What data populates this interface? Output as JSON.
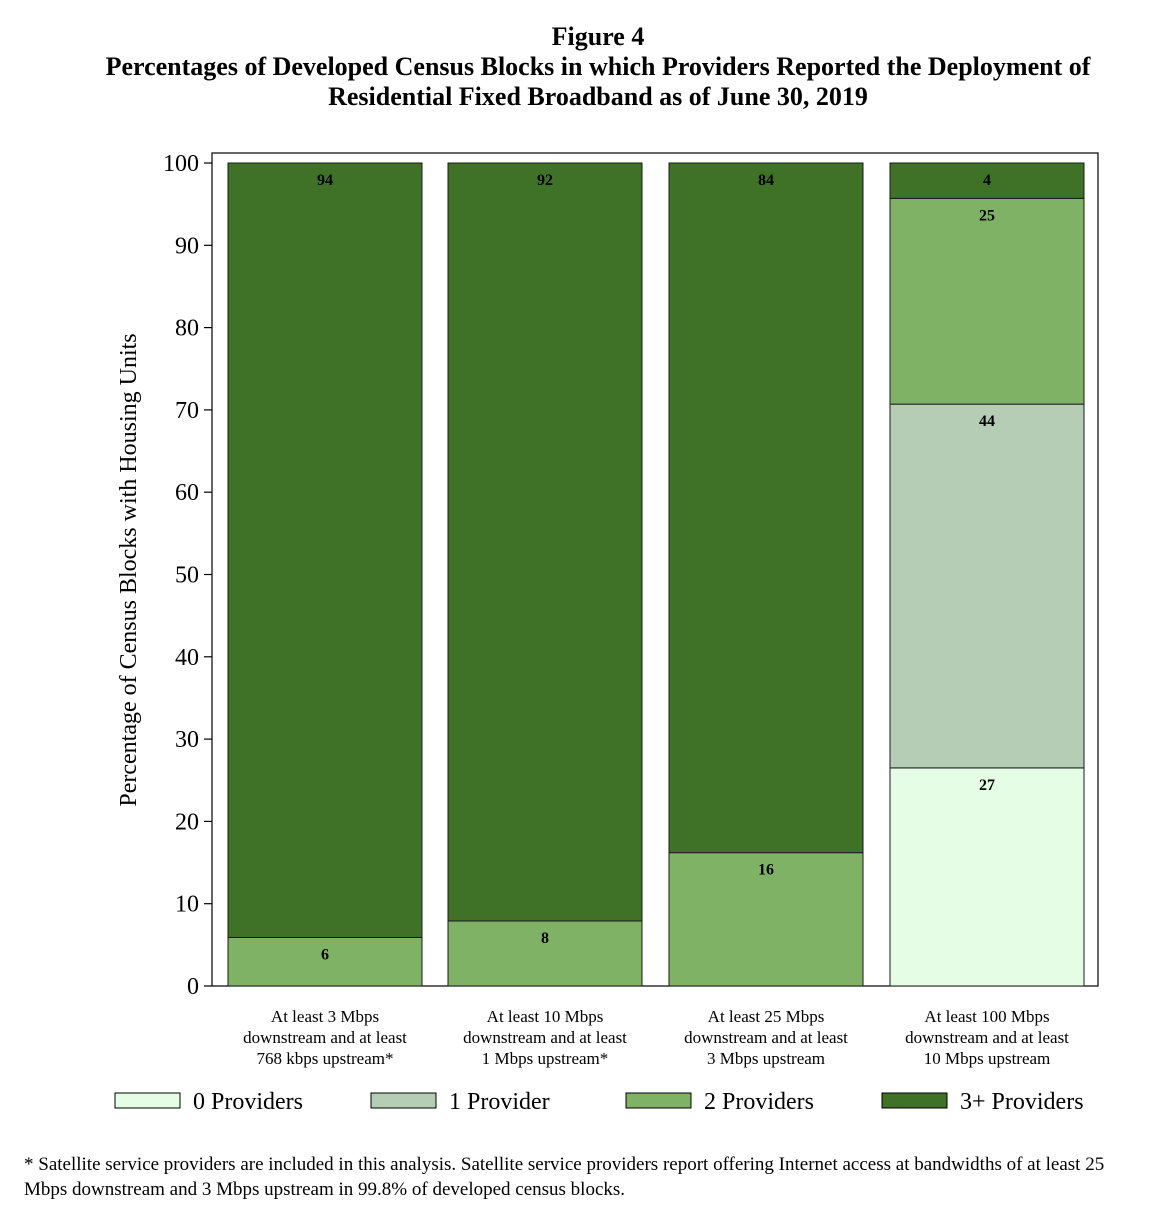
{
  "figure_label": "Figure 4",
  "title_lines": [
    "Percentages of Developed Census Blocks in which Providers Reported the Deployment of",
    "Residential Fixed Broadband as of June 30, 2019"
  ],
  "footnote": "* Satellite service providers are included in this analysis.  Satellite service providers report offering Internet access at bandwidths of at least 25 Mbps downstream and 3 Mbps upstream in 99.8% of developed census blocks.",
  "colors": {
    "p0": "#e4fde4",
    "p1": "#b5cdb5",
    "p2": "#80b266",
    "p3": "#3f7227"
  },
  "chart_data": {
    "type": "bar",
    "stacked": true,
    "ylabel": "Percentage of Census Blocks with Housing Units",
    "ylim": [
      0,
      100
    ],
    "yticks": [
      0,
      10,
      20,
      30,
      40,
      50,
      60,
      70,
      80,
      90,
      100
    ],
    "categories": [
      [
        "At least 3 Mbps",
        "downstream and at least",
        "768 kbps upstream*"
      ],
      [
        "At least 10 Mbps",
        "downstream and at least",
        "1 Mbps upstream*"
      ],
      [
        "At least 25 Mbps",
        "downstream and at least",
        "3 Mbps upstream"
      ],
      [
        "At least 100 Mbps",
        "downstream and at least",
        "10 Mbps upstream"
      ]
    ],
    "series": [
      {
        "name": "0 Providers",
        "color_key": "p0",
        "values": [
          0,
          0,
          0,
          26.5
        ],
        "labels": [
          "",
          "",
          "",
          "27"
        ]
      },
      {
        "name": "1 Provider",
        "color_key": "p1",
        "values": [
          0,
          0,
          0,
          44.2
        ],
        "labels": [
          "",
          "",
          "",
          "44"
        ]
      },
      {
        "name": "2 Providers",
        "color_key": "p2",
        "values": [
          5.9,
          7.9,
          16.2,
          25.0
        ],
        "labels": [
          "6",
          "8",
          "16",
          "25"
        ]
      },
      {
        "name": "3+ Providers",
        "color_key": "p3",
        "values": [
          94.1,
          92.1,
          83.8,
          4.3
        ],
        "labels": [
          "94",
          "92",
          "84",
          "4"
        ]
      }
    ],
    "legend_position": "bottom",
    "grid": false
  }
}
